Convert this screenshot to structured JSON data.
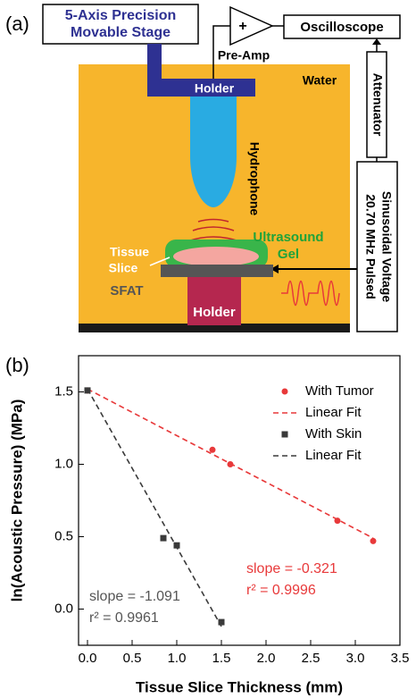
{
  "diagram": {
    "panel_a": "(a)",
    "stage": [
      "5-Axis Precision",
      "Movable Stage"
    ],
    "amp_sign": "+",
    "preamp": "Pre-Amp",
    "oscilloscope": "Oscilloscope",
    "attenuator": "Attenuator",
    "voltage": [
      "20.70 MHz Pulsed",
      "Sinusoidal Voltage"
    ],
    "water": "Water",
    "holder_top": "Holder",
    "hydrophone": "Hydrophone",
    "gel": [
      "Ultrasound",
      "Gel"
    ],
    "tissue": [
      "Tissue",
      "Slice"
    ],
    "sfat": "SFAT",
    "holder_bottom": "Holder"
  },
  "chart_data": {
    "type": "scatter",
    "panel": "(b)",
    "x_label": "Tissue Slice Thickness (mm)",
    "y_label": "ln(Acoustic Pressure) (MPa)",
    "xlim": [
      -0.1,
      3.5
    ],
    "ylim": [
      -0.25,
      1.75
    ],
    "xticks": [
      {
        "value": 0,
        "label": "0.0"
      },
      0.5,
      {
        "value": 1,
        "label": "1.0"
      },
      1.5,
      {
        "value": 2,
        "label": "2.0"
      },
      2.5,
      {
        "value": 3,
        "label": "3.0"
      },
      3.5
    ],
    "yticks": [
      {
        "value": 0,
        "label": "0.0"
      },
      0.5,
      {
        "value": 1,
        "label": "1.0"
      },
      1.5
    ],
    "grid": false,
    "legend": "upper right",
    "series": [
      {
        "name": "With Tumor",
        "color": "#e8393a",
        "style": "circle",
        "x": [
          0,
          1.4,
          1.6,
          2.8,
          3.2
        ],
        "values": [
          1.51,
          1.1,
          1.0,
          0.61,
          0.47
        ]
      },
      {
        "name": "Linear Fit",
        "color": "#e8393a",
        "style": "dashed",
        "x": [
          0,
          3.2
        ],
        "values": [
          1.52,
          0.49
        ]
      },
      {
        "name": "With Skin",
        "color": "#3a3a3a",
        "style": "square",
        "x": [
          0,
          0.85,
          1.0,
          1.5
        ],
        "values": [
          1.51,
          0.49,
          0.44,
          -0.09
        ]
      },
      {
        "name": "Linear Fit",
        "color": "#3a3a3a",
        "style": "dashed",
        "x": [
          0,
          1.5
        ],
        "values": [
          1.52,
          -0.12
        ]
      }
    ],
    "annotations": [
      {
        "text": "slope = -0.321",
        "color": "#e8393a"
      },
      {
        "text": "r² = 0.9996",
        "color": "#e8393a"
      },
      {
        "text": "slope = -1.091",
        "color": "#555555"
      },
      {
        "text": "r² = 0.9961",
        "color": "#555555"
      }
    ]
  }
}
